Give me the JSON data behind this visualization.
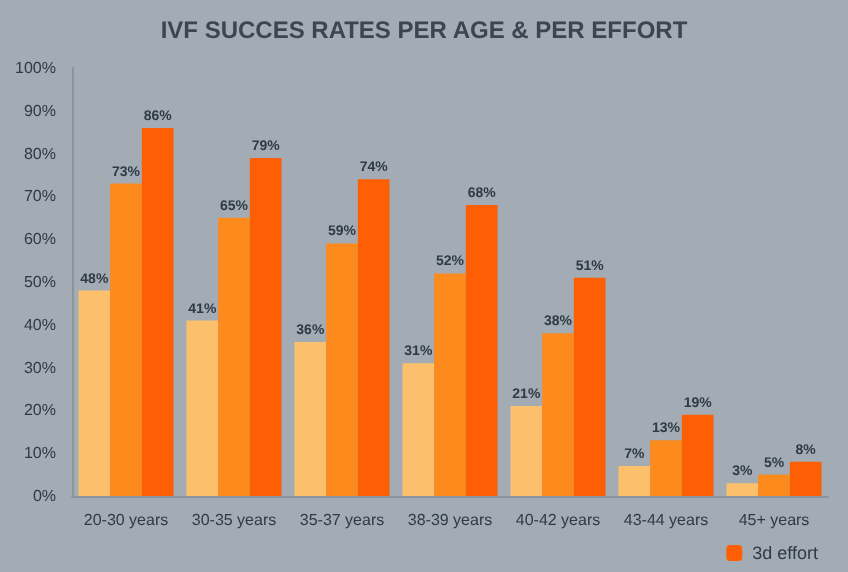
{
  "chart_data": {
    "type": "bar",
    "title": "IVF SUCCES RATES PER AGE & PER EFFORT",
    "categories": [
      "20-30 years",
      "30-35 years",
      "35-37 years",
      "38-39 years",
      "40-42 years",
      "43-44 years",
      "45+ years"
    ],
    "series": [
      {
        "color": "#fcc06c",
        "values": [
          48,
          41,
          36,
          31,
          21,
          7,
          3
        ],
        "value_labels": [
          "48%",
          "41%",
          "36%",
          "31%",
          "21%",
          "7%",
          "3%"
        ]
      },
      {
        "color": "#fd8a1c",
        "values": [
          73,
          65,
          59,
          52,
          38,
          13,
          5
        ],
        "value_labels": [
          "73%",
          "65%",
          "59%",
          "52%",
          "38%",
          "13%",
          "5%"
        ]
      },
      {
        "name": "3d effort",
        "color": "#fe5f05",
        "values": [
          86,
          79,
          74,
          68,
          51,
          19,
          8
        ],
        "value_labels": [
          "86%",
          "79%",
          "74%",
          "68%",
          "51%",
          "19%",
          "8%"
        ]
      }
    ],
    "ylim": [
      0,
      100
    ],
    "yticks": [
      {
        "value": 0,
        "label": "0%"
      },
      {
        "value": 10,
        "label": "10%"
      },
      {
        "value": 20,
        "label": "20%"
      },
      {
        "value": 30,
        "label": "30%"
      },
      {
        "value": 40,
        "label": "40%"
      },
      {
        "value": 50,
        "label": "50%"
      },
      {
        "value": 60,
        "label": "60%"
      },
      {
        "value": 70,
        "label": "70%"
      },
      {
        "value": 80,
        "label": "80%"
      },
      {
        "value": 90,
        "label": "90%"
      },
      {
        "value": 100,
        "label": "100%"
      }
    ],
    "legend": "bottom right"
  }
}
